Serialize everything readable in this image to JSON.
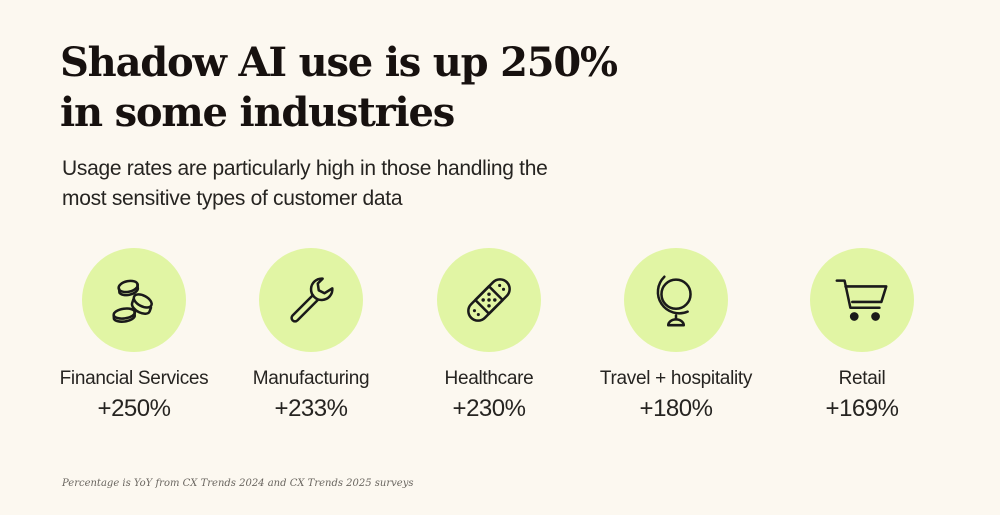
{
  "title_line1": "Shadow AI use is up 250%",
  "title_line2": "in some industries",
  "subtitle_line1": "Usage rates are particularly high in those handling the",
  "subtitle_line2": "most sensitive types of customer data",
  "footnote": "Percentage is YoY from CX Trends 2024 and CX Trends 2025 surveys",
  "colors": {
    "background": "#fcf8f0",
    "circle": "#e1f5a4",
    "text": "#1e1e1e"
  },
  "chart_data": {
    "type": "table",
    "title": "Shadow AI use is up 250% in some industries",
    "subtitle": "Usage rates are particularly high in those handling the most sensitive types of customer data",
    "categories": [
      "Financial Services",
      "Manufacturing",
      "Healthcare",
      "Travel + hospitality",
      "Retail"
    ],
    "values": [
      250,
      233,
      230,
      180,
      169
    ],
    "unit": "% YoY increase",
    "items": [
      {
        "label": "Financial Services",
        "value": "+250%",
        "icon": "coins-icon"
      },
      {
        "label": "Manufacturing",
        "value": "+233%",
        "icon": "wrench-icon"
      },
      {
        "label": "Healthcare",
        "value": "+230%",
        "icon": "bandage-icon"
      },
      {
        "label": "Travel + hospitality",
        "value": "+180%",
        "icon": "globe-icon"
      },
      {
        "label": "Retail",
        "value": "+169%",
        "icon": "cart-icon"
      }
    ]
  }
}
